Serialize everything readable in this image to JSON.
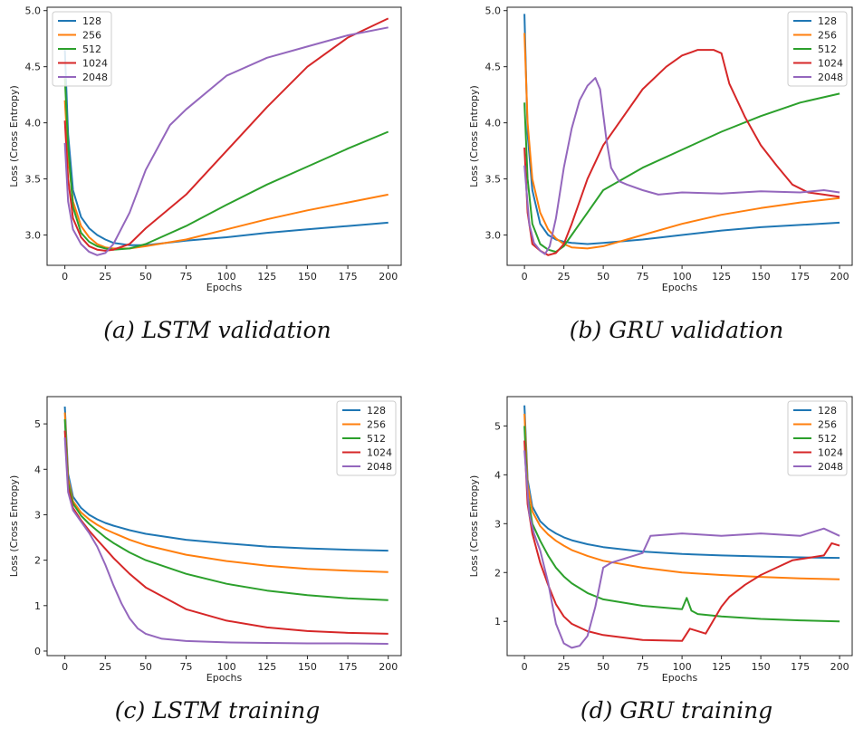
{
  "colors": {
    "128": "#1f77b4",
    "256": "#ff7f0e",
    "512": "#2ca02c",
    "1024": "#d62728",
    "2048": "#9467bd"
  },
  "chart_data": [
    {
      "type": "line",
      "caption": "(a) LSTM validation",
      "xlabel": "Epochs",
      "ylabel": "Loss (Cross Entropy)",
      "xlim": [
        -11,
        208
      ],
      "ylim": [
        2.73,
        5.03
      ],
      "xticks": [
        0,
        25,
        50,
        75,
        100,
        125,
        150,
        175,
        200
      ],
      "yticks": [
        3.0,
        3.5,
        4.0,
        4.5,
        5.0
      ],
      "ytick_labels": [
        "3.0",
        "3.5",
        "4.0",
        "4.5",
        "5.0"
      ],
      "legend_position": "top-left",
      "grid": false,
      "series": [
        {
          "name": "128",
          "x": [
            0,
            2,
            5,
            10,
            15,
            20,
            25,
            30,
            40,
            50,
            75,
            100,
            125,
            150,
            175,
            200
          ],
          "y": [
            4.65,
            3.9,
            3.4,
            3.16,
            3.06,
            3.0,
            2.96,
            2.93,
            2.91,
            2.91,
            2.95,
            2.98,
            3.02,
            3.05,
            3.08,
            3.11
          ]
        },
        {
          "name": "256",
          "x": [
            0,
            2,
            5,
            10,
            15,
            20,
            25,
            30,
            40,
            50,
            75,
            100,
            125,
            150,
            175,
            200
          ],
          "y": [
            4.2,
            3.7,
            3.3,
            3.08,
            2.98,
            2.92,
            2.89,
            2.88,
            2.88,
            2.9,
            2.96,
            3.05,
            3.14,
            3.22,
            3.29,
            3.36
          ]
        },
        {
          "name": "512",
          "x": [
            0,
            2,
            5,
            10,
            15,
            20,
            25,
            30,
            40,
            50,
            75,
            100,
            125,
            150,
            175,
            200
          ],
          "y": [
            4.4,
            3.8,
            3.25,
            3.02,
            2.94,
            2.9,
            2.88,
            2.87,
            2.88,
            2.92,
            3.08,
            3.27,
            3.45,
            3.61,
            3.77,
            3.92
          ]
        },
        {
          "name": "1024",
          "x": [
            0,
            2,
            5,
            10,
            15,
            20,
            25,
            30,
            40,
            50,
            75,
            100,
            125,
            150,
            175,
            200
          ],
          "y": [
            4.02,
            3.5,
            3.15,
            2.98,
            2.9,
            2.87,
            2.86,
            2.87,
            2.92,
            3.06,
            3.36,
            3.75,
            4.14,
            4.5,
            4.76,
            4.93
          ]
        },
        {
          "name": "2048",
          "x": [
            0,
            2,
            5,
            10,
            15,
            20,
            25,
            30,
            40,
            50,
            65,
            75,
            100,
            125,
            150,
            175,
            200
          ],
          "y": [
            3.82,
            3.3,
            3.05,
            2.92,
            2.85,
            2.82,
            2.84,
            2.92,
            3.2,
            3.58,
            3.98,
            4.12,
            4.42,
            4.58,
            4.68,
            4.78,
            4.85
          ]
        }
      ]
    },
    {
      "type": "line",
      "caption": "(b) GRU validation",
      "xlabel": "Epochs",
      "ylabel": "Loss (Cross Entropy)",
      "xlim": [
        -11,
        208
      ],
      "ylim": [
        2.73,
        5.03
      ],
      "xticks": [
        0,
        25,
        50,
        75,
        100,
        125,
        150,
        175,
        200
      ],
      "yticks": [
        3.0,
        3.5,
        4.0,
        4.5,
        5.0
      ],
      "ytick_labels": [
        "3.0",
        "3.5",
        "4.0",
        "4.5",
        "5.0"
      ],
      "legend_position": "top-right",
      "grid": false,
      "series": [
        {
          "name": "128",
          "x": [
            0,
            2,
            5,
            10,
            15,
            20,
            25,
            30,
            40,
            50,
            75,
            100,
            125,
            150,
            175,
            200
          ],
          "y": [
            4.97,
            3.9,
            3.4,
            3.1,
            3.0,
            2.96,
            2.94,
            2.93,
            2.92,
            2.93,
            2.96,
            3.0,
            3.04,
            3.07,
            3.09,
            3.11
          ]
        },
        {
          "name": "256",
          "x": [
            0,
            2,
            5,
            10,
            15,
            20,
            25,
            30,
            40,
            50,
            75,
            100,
            125,
            150,
            175,
            200
          ],
          "y": [
            4.8,
            4.0,
            3.5,
            3.2,
            3.05,
            2.97,
            2.92,
            2.89,
            2.88,
            2.9,
            3.0,
            3.1,
            3.18,
            3.24,
            3.29,
            3.33
          ]
        },
        {
          "name": "512",
          "x": [
            0,
            2,
            5,
            10,
            15,
            20,
            25,
            30,
            40,
            50,
            75,
            100,
            125,
            150,
            175,
            200
          ],
          "y": [
            4.18,
            3.5,
            3.1,
            2.92,
            2.87,
            2.85,
            2.9,
            3.0,
            3.2,
            3.4,
            3.6,
            3.76,
            3.92,
            4.06,
            4.18,
            4.26
          ]
        },
        {
          "name": "1024",
          "x": [
            0,
            2,
            5,
            10,
            15,
            20,
            25,
            30,
            40,
            50,
            75,
            90,
            100,
            110,
            120,
            125,
            130,
            140,
            150,
            160,
            170,
            180,
            190,
            200
          ],
          "y": [
            3.78,
            3.2,
            2.92,
            2.86,
            2.82,
            2.84,
            2.92,
            3.1,
            3.5,
            3.8,
            4.3,
            4.5,
            4.6,
            4.65,
            4.65,
            4.62,
            4.35,
            4.05,
            3.8,
            3.62,
            3.45,
            3.38,
            3.36,
            3.34
          ]
        },
        {
          "name": "2048",
          "x": [
            0,
            3,
            6,
            10,
            13,
            16,
            20,
            25,
            30,
            35,
            40,
            45,
            48,
            52,
            55,
            60,
            65,
            75,
            85,
            100,
            125,
            150,
            175,
            190,
            200
          ],
          "y": [
            3.62,
            3.1,
            2.93,
            2.86,
            2.83,
            2.9,
            3.15,
            3.6,
            3.95,
            4.2,
            4.33,
            4.4,
            4.3,
            3.85,
            3.6,
            3.48,
            3.45,
            3.4,
            3.36,
            3.38,
            3.37,
            3.39,
            3.38,
            3.4,
            3.38
          ]
        }
      ]
    },
    {
      "type": "line",
      "caption": "(c) LSTM training",
      "xlabel": "Epochs",
      "ylabel": "Loss (Cross Entropy)",
      "xlim": [
        -11,
        208
      ],
      "ylim": [
        -0.1,
        5.6
      ],
      "xticks": [
        0,
        25,
        50,
        75,
        100,
        125,
        150,
        175,
        200
      ],
      "yticks": [
        0,
        1,
        2,
        3,
        4,
        5
      ],
      "ytick_labels": [
        "0",
        "1",
        "2",
        "3",
        "4",
        "5"
      ],
      "legend_position": "top-right",
      "grid": false,
      "series": [
        {
          "name": "128",
          "x": [
            0,
            2,
            5,
            10,
            15,
            20,
            25,
            30,
            40,
            50,
            75,
            100,
            125,
            150,
            175,
            200
          ],
          "y": [
            5.38,
            3.9,
            3.4,
            3.15,
            3.0,
            2.9,
            2.82,
            2.76,
            2.66,
            2.58,
            2.45,
            2.37,
            2.3,
            2.26,
            2.23,
            2.21
          ]
        },
        {
          "name": "256",
          "x": [
            0,
            2,
            5,
            10,
            15,
            20,
            25,
            30,
            40,
            50,
            75,
            100,
            125,
            150,
            175,
            200
          ],
          "y": [
            5.25,
            3.8,
            3.3,
            3.05,
            2.9,
            2.78,
            2.68,
            2.6,
            2.45,
            2.33,
            2.12,
            1.98,
            1.88,
            1.81,
            1.77,
            1.74
          ]
        },
        {
          "name": "512",
          "x": [
            0,
            2,
            5,
            10,
            15,
            20,
            25,
            30,
            40,
            50,
            75,
            100,
            125,
            150,
            175,
            200
          ],
          "y": [
            5.1,
            3.7,
            3.25,
            2.98,
            2.8,
            2.65,
            2.5,
            2.38,
            2.17,
            2.0,
            1.7,
            1.48,
            1.33,
            1.23,
            1.16,
            1.12
          ]
        },
        {
          "name": "1024",
          "x": [
            0,
            2,
            5,
            10,
            15,
            20,
            25,
            30,
            40,
            50,
            75,
            100,
            125,
            150,
            175,
            200
          ],
          "y": [
            4.85,
            3.6,
            3.15,
            2.88,
            2.65,
            2.45,
            2.25,
            2.05,
            1.7,
            1.4,
            0.92,
            0.67,
            0.52,
            0.44,
            0.4,
            0.38
          ]
        },
        {
          "name": "2048",
          "x": [
            0,
            2,
            5,
            10,
            15,
            20,
            25,
            30,
            35,
            40,
            45,
            50,
            60,
            75,
            100,
            125,
            150,
            175,
            200
          ],
          "y": [
            4.7,
            3.5,
            3.1,
            2.85,
            2.6,
            2.3,
            1.9,
            1.45,
            1.05,
            0.72,
            0.5,
            0.38,
            0.27,
            0.22,
            0.19,
            0.18,
            0.17,
            0.17,
            0.16
          ]
        }
      ]
    },
    {
      "type": "line",
      "caption": "(d) GRU training",
      "xlabel": "Epochs",
      "ylabel": "Loss (Cross Entropy)",
      "xlim": [
        -11,
        208
      ],
      "ylim": [
        0.3,
        5.6
      ],
      "xticks": [
        0,
        25,
        50,
        75,
        100,
        125,
        150,
        175,
        200
      ],
      "yticks": [
        1,
        2,
        3,
        4,
        5
      ],
      "ytick_labels": [
        "1",
        "2",
        "3",
        "4",
        "5"
      ],
      "legend_position": "top-right",
      "grid": false,
      "series": [
        {
          "name": "128",
          "x": [
            0,
            2,
            5,
            10,
            15,
            20,
            25,
            30,
            40,
            50,
            75,
            100,
            125,
            150,
            175,
            200
          ],
          "y": [
            5.42,
            3.9,
            3.35,
            3.05,
            2.9,
            2.8,
            2.72,
            2.66,
            2.58,
            2.52,
            2.43,
            2.38,
            2.35,
            2.33,
            2.31,
            2.3
          ]
        },
        {
          "name": "256",
          "x": [
            0,
            2,
            5,
            10,
            15,
            20,
            25,
            30,
            40,
            50,
            75,
            100,
            125,
            150,
            175,
            200
          ],
          "y": [
            5.25,
            3.8,
            3.25,
            2.95,
            2.78,
            2.65,
            2.55,
            2.46,
            2.34,
            2.24,
            2.1,
            2.0,
            1.95,
            1.91,
            1.88,
            1.86
          ]
        },
        {
          "name": "512",
          "x": [
            0,
            2,
            5,
            10,
            15,
            20,
            25,
            30,
            40,
            50,
            75,
            100,
            103,
            106,
            110,
            125,
            150,
            175,
            200
          ],
          "y": [
            5.0,
            3.6,
            3.0,
            2.65,
            2.35,
            2.1,
            1.92,
            1.78,
            1.58,
            1.45,
            1.32,
            1.25,
            1.48,
            1.22,
            1.15,
            1.1,
            1.05,
            1.02,
            1.0
          ]
        },
        {
          "name": "1024",
          "x": [
            0,
            2,
            5,
            10,
            15,
            20,
            25,
            30,
            40,
            50,
            75,
            100,
            105,
            115,
            125,
            130,
            140,
            150,
            160,
            170,
            180,
            190,
            195,
            200
          ],
          "y": [
            4.7,
            3.4,
            2.8,
            2.2,
            1.75,
            1.35,
            1.1,
            0.95,
            0.8,
            0.72,
            0.62,
            0.6,
            0.85,
            0.75,
            1.3,
            1.5,
            1.75,
            1.95,
            2.1,
            2.25,
            2.3,
            2.35,
            2.6,
            2.55
          ]
        },
        {
          "name": "2048",
          "x": [
            0,
            3,
            6,
            10,
            15,
            20,
            25,
            30,
            35,
            40,
            45,
            50,
            55,
            60,
            75,
            80,
            100,
            125,
            150,
            175,
            190,
            200
          ],
          "y": [
            4.5,
            3.2,
            2.8,
            2.45,
            1.8,
            0.95,
            0.55,
            0.46,
            0.5,
            0.7,
            1.3,
            2.1,
            2.2,
            2.25,
            2.4,
            2.75,
            2.8,
            2.75,
            2.8,
            2.75,
            2.9,
            2.75
          ]
        }
      ]
    }
  ]
}
